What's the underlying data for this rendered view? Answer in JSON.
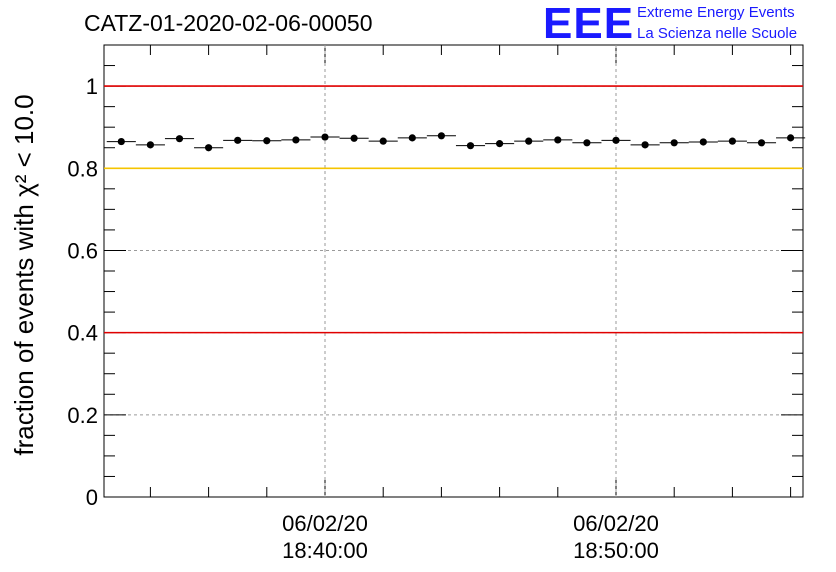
{
  "header": {
    "title": "CATZ-01-2020-02-06-00050",
    "logo_text": "EEE",
    "logo_line1": "Extreme Energy Events",
    "logo_line2": "La Scienza nelle Scuole"
  },
  "chart_data": {
    "type": "scatter",
    "title": "CATZ-01-2020-02-06-00050",
    "ylabel": "fraction of events with χ² < 10.0",
    "ylim": [
      0,
      1.1
    ],
    "y_ticks": [
      "0",
      "0.2",
      "0.4",
      "0.6",
      "0.8",
      "1"
    ],
    "x_ticks": [
      {
        "date": "06/02/20",
        "time": "18:40:00"
      },
      {
        "date": "06/02/20",
        "time": "18:50:00"
      }
    ],
    "x_minutes_range": [
      -7.5,
      16.5
    ],
    "grid": true,
    "reference_lines": [
      {
        "y": 1.0,
        "color": "#e00000"
      },
      {
        "y": 0.8,
        "color": "#f5c400"
      },
      {
        "y": 0.4,
        "color": "#e00000"
      }
    ],
    "series": [
      {
        "color": "#000000",
        "bin_width_minutes": 1,
        "x_minutes": [
          -7,
          -6,
          -5,
          -4,
          -3,
          -2,
          -1,
          0,
          1,
          2,
          3,
          4,
          5,
          6,
          7,
          8,
          9,
          10,
          11,
          12,
          13,
          14,
          15,
          16
        ],
        "values": [
          0.865,
          0.857,
          0.872,
          0.85,
          0.868,
          0.867,
          0.869,
          0.876,
          0.873,
          0.866,
          0.874,
          0.879,
          0.855,
          0.86,
          0.866,
          0.869,
          0.862,
          0.868,
          0.857,
          0.862,
          0.864,
          0.866,
          0.862,
          0.874
        ]
      }
    ]
  }
}
